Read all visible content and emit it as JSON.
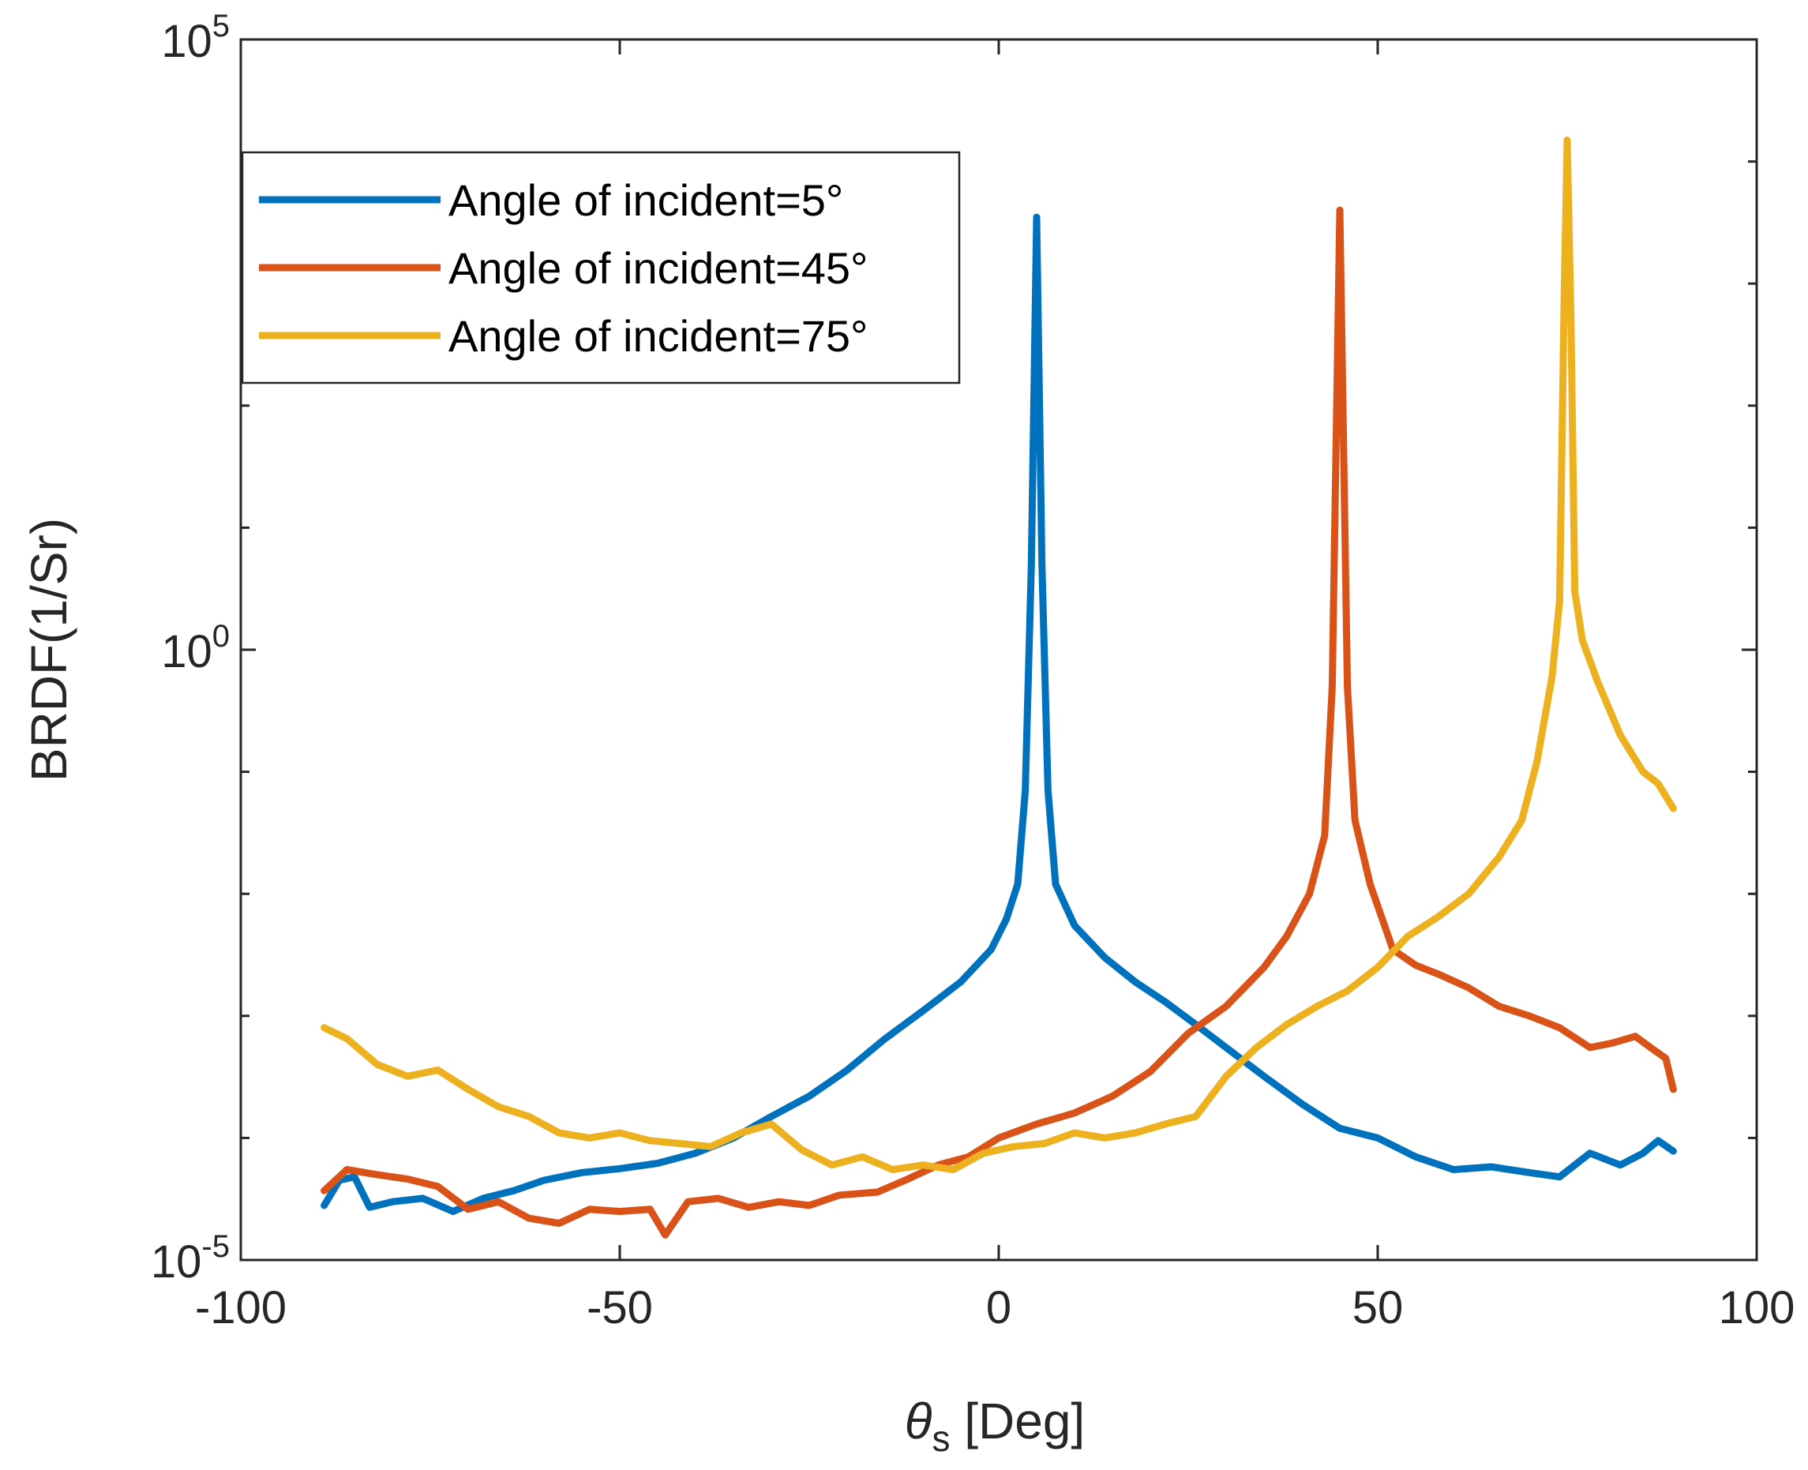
{
  "chart_data": {
    "type": "line",
    "title": "",
    "xlabel_symbol": "θ",
    "xlabel_subscript": "s",
    "xlabel_unit": " [Deg]",
    "ylabel": "BRDF(1/Sr)",
    "xlim": [
      -100,
      100
    ],
    "ylim": [
      1e-05,
      100000
    ],
    "yscale": "log",
    "x_ticks": [
      "-100",
      "-50",
      "0",
      "50",
      "100"
    ],
    "y_ticks": [
      {
        "base": "10",
        "exp": "-5"
      },
      {
        "base": "10",
        "exp": "0"
      },
      {
        "base": "10",
        "exp": "5"
      }
    ],
    "legend_position": "top-left",
    "series": [
      {
        "name": "Angle of incident=5°",
        "color": "#0072BD",
        "points": [
          [
            -89,
            2.8e-05
          ],
          [
            -87,
            4.5e-05
          ],
          [
            -85,
            4.8e-05
          ],
          [
            -83,
            2.7e-05
          ],
          [
            -80,
            3e-05
          ],
          [
            -76,
            3.2e-05
          ],
          [
            -72,
            2.5e-05
          ],
          [
            -68,
            3.2e-05
          ],
          [
            -64,
            3.7e-05
          ],
          [
            -60,
            4.5e-05
          ],
          [
            -55,
            5.2e-05
          ],
          [
            -50,
            5.6e-05
          ],
          [
            -45,
            6.2e-05
          ],
          [
            -40,
            7.5e-05
          ],
          [
            -35,
            0.0001
          ],
          [
            -30,
            0.00015
          ],
          [
            -25,
            0.00022
          ],
          [
            -20,
            0.00036
          ],
          [
            -15,
            0.00065
          ],
          [
            -10,
            0.0011
          ],
          [
            -5,
            0.0019
          ],
          [
            -1,
            0.0035
          ],
          [
            1,
            0.0062
          ],
          [
            2.5,
            0.012
          ],
          [
            3.5,
            0.07
          ],
          [
            4.3,
            5.0
          ],
          [
            5,
            3500
          ],
          [
            5.7,
            5.0
          ],
          [
            6.5,
            0.07
          ],
          [
            7.5,
            0.012
          ],
          [
            10,
            0.0055
          ],
          [
            14,
            0.003
          ],
          [
            18,
            0.0019
          ],
          [
            22,
            0.0013
          ],
          [
            26,
            0.00085
          ],
          [
            30,
            0.00055
          ],
          [
            35,
            0.00032
          ],
          [
            40,
            0.00019
          ],
          [
            45,
            0.00012
          ],
          [
            50,
            0.0001
          ],
          [
            55,
            7e-05
          ],
          [
            60,
            5.5e-05
          ],
          [
            65,
            5.8e-05
          ],
          [
            70,
            5.2e-05
          ],
          [
            74,
            4.8e-05
          ],
          [
            78,
            7.5e-05
          ],
          [
            82,
            6e-05
          ],
          [
            85,
            7.5e-05
          ],
          [
            87,
            9.5e-05
          ],
          [
            89,
            7.8e-05
          ]
        ]
      },
      {
        "name": "Angle of incident=45°",
        "color": "#D95319",
        "points": [
          [
            -89,
            3.7e-05
          ],
          [
            -86,
            5.5e-05
          ],
          [
            -82,
            5e-05
          ],
          [
            -78,
            4.6e-05
          ],
          [
            -74,
            4e-05
          ],
          [
            -70,
            2.6e-05
          ],
          [
            -66,
            3e-05
          ],
          [
            -62,
            2.2e-05
          ],
          [
            -58,
            2e-05
          ],
          [
            -54,
            2.6e-05
          ],
          [
            -50,
            2.5e-05
          ],
          [
            -46,
            2.6e-05
          ],
          [
            -44,
            1.6e-05
          ],
          [
            -41,
            3e-05
          ],
          [
            -37,
            3.2e-05
          ],
          [
            -33,
            2.7e-05
          ],
          [
            -29,
            3e-05
          ],
          [
            -25,
            2.8e-05
          ],
          [
            -21,
            3.4e-05
          ],
          [
            -16,
            3.6e-05
          ],
          [
            -12,
            4.6e-05
          ],
          [
            -8,
            6e-05
          ],
          [
            -4,
            7e-05
          ],
          [
            0,
            0.0001
          ],
          [
            5,
            0.00013
          ],
          [
            10,
            0.00016
          ],
          [
            15,
            0.00022
          ],
          [
            20,
            0.00035
          ],
          [
            25,
            0.00072
          ],
          [
            30,
            0.0012
          ],
          [
            35,
            0.0025
          ],
          [
            38,
            0.0045
          ],
          [
            41,
            0.01
          ],
          [
            43,
            0.03
          ],
          [
            44,
            0.5
          ],
          [
            45,
            4000
          ],
          [
            46,
            0.5
          ],
          [
            47,
            0.04
          ],
          [
            49,
            0.012
          ],
          [
            52,
            0.0035
          ],
          [
            55,
            0.0026
          ],
          [
            58,
            0.0022
          ],
          [
            62,
            0.0017
          ],
          [
            66,
            0.0012
          ],
          [
            70,
            0.001
          ],
          [
            74,
            0.0008
          ],
          [
            78,
            0.00055
          ],
          [
            81,
            0.0006
          ],
          [
            84,
            0.00068
          ],
          [
            86,
            0.00055
          ],
          [
            88,
            0.00045
          ],
          [
            89,
            0.00025
          ]
        ]
      },
      {
        "name": "Angle of incident=75°",
        "color": "#EDB120",
        "points": [
          [
            -89,
            0.0008
          ],
          [
            -86,
            0.00065
          ],
          [
            -82,
            0.0004
          ],
          [
            -78,
            0.00032
          ],
          [
            -74,
            0.00036
          ],
          [
            -70,
            0.00025
          ],
          [
            -66,
            0.00018
          ],
          [
            -62,
            0.00015
          ],
          [
            -58,
            0.00011
          ],
          [
            -54,
            0.0001
          ],
          [
            -50,
            0.00011
          ],
          [
            -46,
            9.5e-05
          ],
          [
            -42,
            9e-05
          ],
          [
            -38,
            8.5e-05
          ],
          [
            -34,
            0.00011
          ],
          [
            -30,
            0.00013
          ],
          [
            -26,
            8e-05
          ],
          [
            -22,
            6e-05
          ],
          [
            -18,
            7e-05
          ],
          [
            -14,
            5.5e-05
          ],
          [
            -10,
            6e-05
          ],
          [
            -6,
            5.5e-05
          ],
          [
            -2,
            7.5e-05
          ],
          [
            2,
            8.5e-05
          ],
          [
            6,
            9e-05
          ],
          [
            10,
            0.00011
          ],
          [
            14,
            0.0001
          ],
          [
            18,
            0.00011
          ],
          [
            22,
            0.00013
          ],
          [
            26,
            0.00015
          ],
          [
            30,
            0.00032
          ],
          [
            34,
            0.00055
          ],
          [
            38,
            0.00085
          ],
          [
            42,
            0.0012
          ],
          [
            46,
            0.0016
          ],
          [
            50,
            0.0025
          ],
          [
            54,
            0.0045
          ],
          [
            58,
            0.0065
          ],
          [
            62,
            0.01
          ],
          [
            66,
            0.02
          ],
          [
            69,
            0.04
          ],
          [
            71,
            0.12
          ],
          [
            73,
            0.6
          ],
          [
            74,
            2.5
          ],
          [
            74.6,
            800
          ],
          [
            75,
            15000
          ],
          [
            75.5,
            500
          ],
          [
            76,
            3.0
          ],
          [
            77,
            1.2
          ],
          [
            79,
            0.55
          ],
          [
            82,
            0.2
          ],
          [
            85,
            0.1
          ],
          [
            87,
            0.08
          ],
          [
            89,
            0.05
          ]
        ]
      }
    ]
  }
}
